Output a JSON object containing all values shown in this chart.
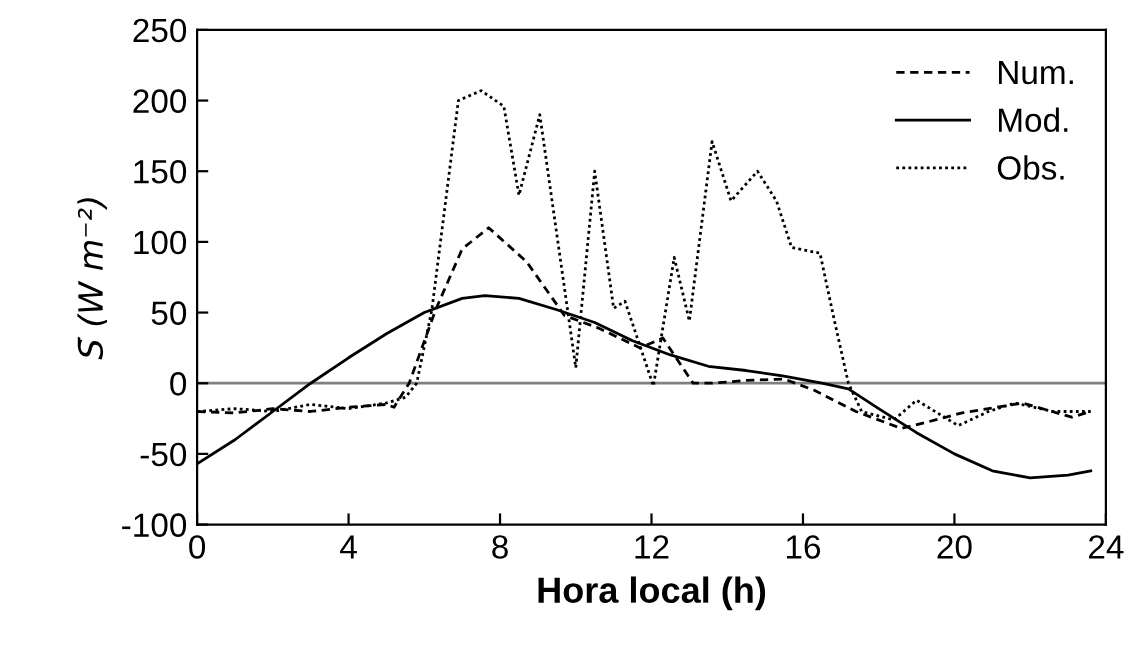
{
  "chart_data": {
    "type": "line",
    "xlabel": "Hora local (h)",
    "ylabel": "S̄ (W m⁻²)",
    "xlim": [
      0,
      24
    ],
    "xticks": [
      0,
      4,
      8,
      12,
      16,
      20,
      24
    ],
    "ylim": [
      -100,
      250
    ],
    "yticks": [
      -100,
      -50,
      0,
      50,
      100,
      150,
      200,
      250
    ],
    "grid": false,
    "legend": "top right",
    "marker": "none",
    "ref_lines": [
      {
        "axis": "y",
        "value": 0,
        "color": "#808080"
      }
    ],
    "series": [
      {
        "name": "Num.",
        "color": "#000000",
        "line_style": "dashed",
        "x": [
          0,
          1,
          2,
          3,
          4,
          5,
          5.2,
          5.6,
          6.3,
          7,
          7.7,
          8.7,
          9.7,
          10.6,
          11.7,
          12.3,
          13.1,
          13.6,
          14.5,
          15.5,
          16.3,
          17.4,
          18.6,
          19.5,
          20.2,
          21.8,
          23.1,
          23.6
        ],
        "values": [
          -20,
          -21,
          -18,
          -20,
          -17,
          -15,
          -17,
          0,
          52,
          95,
          110,
          86,
          48,
          39,
          25,
          32,
          0,
          0,
          2,
          3,
          -5,
          -20,
          -32,
          -26,
          -21,
          -14,
          -24,
          -20
        ]
      },
      {
        "name": "Mod.",
        "color": "#000000",
        "line_style": "solid",
        "x": [
          0,
          1,
          2,
          3,
          4,
          5,
          6,
          7,
          7.6,
          8.5,
          9.5,
          10.5,
          11.5,
          12.5,
          13.5,
          14.5,
          15.5,
          16.5,
          17.2,
          18,
          19,
          20,
          21,
          22,
          23,
          23.6
        ],
        "values": [
          -57,
          -40,
          -20,
          0,
          18,
          35,
          50,
          60,
          62,
          60,
          52,
          43,
          30,
          20,
          12,
          9,
          5,
          0,
          -4,
          -18,
          -35,
          -50,
          -62,
          -67,
          -65,
          -62
        ]
      },
      {
        "name": "Obs.",
        "color": "#000000",
        "line_style": "dotted",
        "x": [
          0,
          1,
          2,
          3,
          4,
          5,
          5.5,
          5.8,
          6.2,
          6.9,
          7.5,
          8.1,
          8.5,
          9.05,
          10.0,
          10.5,
          11.0,
          11.3,
          12.05,
          12.6,
          13.0,
          13.6,
          14.1,
          14.8,
          15.3,
          15.7,
          16.45,
          16.8,
          17.2,
          17.55,
          18.4,
          19.0,
          20.1,
          20.9,
          21.6,
          22.6,
          23.6
        ],
        "values": [
          -20,
          -18,
          -20,
          -15,
          -18,
          -14,
          -10,
          0,
          52,
          200,
          207,
          196,
          133,
          190,
          11,
          150,
          53,
          58,
          -2,
          89,
          44,
          171,
          129,
          150,
          129,
          96,
          92,
          48,
          0,
          -20,
          -26,
          -12,
          -30,
          -20,
          -14,
          -20,
          -20
        ]
      }
    ]
  }
}
